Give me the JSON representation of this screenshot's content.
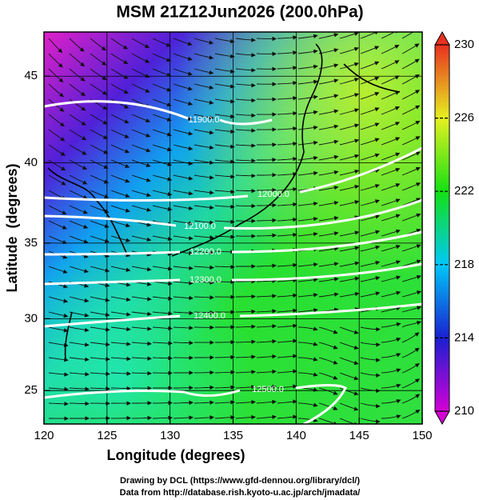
{
  "chart_data": {
    "type": "map",
    "title": "MSM 21Z12Jun2026 (200.0hPa)",
    "x_label": "Longitude (degrees)",
    "y_label": "Latitude  (degrees)",
    "projection": "mercator",
    "xlim": [
      120,
      150
    ],
    "ylim": [
      22.6,
      47.4
    ],
    "xticks": [
      120,
      125,
      130,
      135,
      140,
      145,
      150
    ],
    "yticks": [
      25,
      30,
      35,
      40,
      45
    ],
    "grid": true,
    "contour_labels": [
      "11900.0",
      "12000.0",
      "12100.0",
      "12200.0",
      "12300.0",
      "12400.0",
      "12500.0"
    ],
    "colorbar": {
      "lim": [
        210,
        230
      ],
      "ticks": [
        210,
        214,
        218,
        222,
        226,
        230
      ],
      "colors": [
        "#d400d4",
        "#1a20d0",
        "#00c8f8",
        "#14e014",
        "#e6f020",
        "#e83020"
      ]
    },
    "footer": [
      "Drawing by DCL (https://www.gfd-dennou.org/library/dcl/)",
      "Data from http://database.rish.kyoto-u.ac.jp/arch/jmadata/"
    ]
  }
}
